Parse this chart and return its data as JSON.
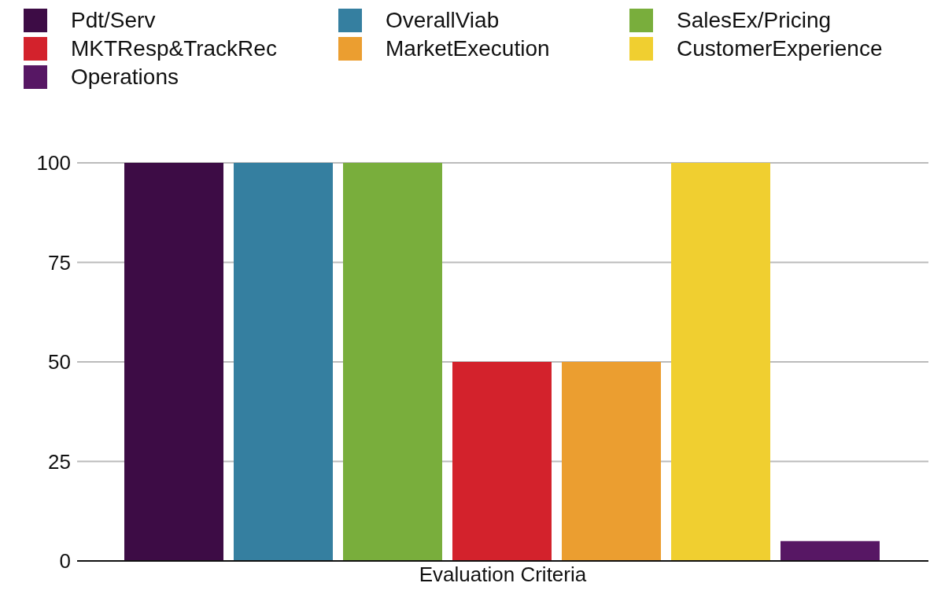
{
  "chart_data": {
    "type": "bar",
    "categories": [
      "Evaluation Criteria"
    ],
    "series": [
      {
        "name": "Pdt/Serv",
        "color": "#3d0c45",
        "values": [
          100
        ]
      },
      {
        "name": "OverallViab",
        "color": "#357fa0",
        "values": [
          100
        ]
      },
      {
        "name": "SalesEx/Pricing",
        "color": "#79ae3c",
        "values": [
          100
        ]
      },
      {
        "name": "MKTResp&TrackRec",
        "color": "#d3222c",
        "values": [
          50
        ]
      },
      {
        "name": "MarketExecution",
        "color": "#eb9e30",
        "values": [
          50
        ]
      },
      {
        "name": "CustomerExperience",
        "color": "#f0cf30",
        "values": [
          100
        ]
      },
      {
        "name": "Operations",
        "color": "#571764",
        "values": [
          5
        ]
      }
    ],
    "ylim": [
      0,
      100
    ],
    "yticks": [
      0,
      25,
      50,
      75,
      100
    ],
    "grid": "y",
    "legend": "top"
  }
}
